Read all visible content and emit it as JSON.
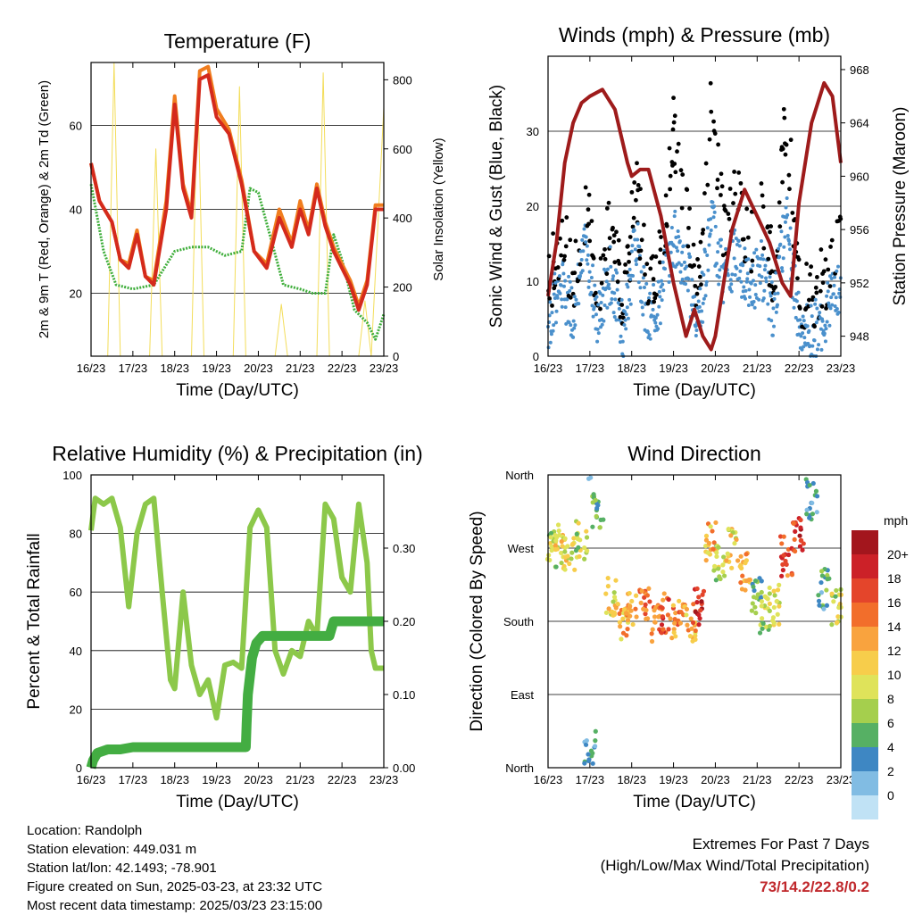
{
  "colors": {
    "temp_2m": "#d42a1c",
    "temp_9m": "#f07d1e",
    "dewpoint": "#3fae3b",
    "solar": "#f3dd5a",
    "wind": "#4a90cc",
    "gust": "#000000",
    "pressure": "#9e1b1b",
    "rh": "#8cc84a",
    "precip": "#43ad42"
  },
  "x_tick_labels": [
    "16/23",
    "17/23",
    "18/23",
    "19/23",
    "20/23",
    "21/23",
    "22/23",
    "23/23"
  ],
  "chart_data": [
    {
      "id": "temperature",
      "type": "line",
      "title": "Temperature (F)",
      "xlabel": "Time (Day/UTC)",
      "ylabel": "2m & 9m T (Red, Orange) & 2m Td (Green)",
      "y2label": "Solar Insolation (Yellow)",
      "ylim": [
        5,
        75
      ],
      "yticks": [
        20,
        40,
        60
      ],
      "y2lim": [
        0,
        850
      ],
      "y2ticks": [
        0,
        200,
        400,
        600,
        800
      ],
      "x_days": [
        16,
        23
      ],
      "series": [
        {
          "key": "temp_2m",
          "axis": "left",
          "x": [
            16,
            16.2,
            16.5,
            16.7,
            16.9,
            17.1,
            17.3,
            17.5,
            17.8,
            18.0,
            18.2,
            18.4,
            18.6,
            18.8,
            19.0,
            19.3,
            19.6,
            19.9,
            20.2,
            20.5,
            20.8,
            21.0,
            21.2,
            21.4,
            21.6,
            21.8,
            22.0,
            22.2,
            22.4,
            22.6,
            22.8,
            23.0
          ],
          "values": [
            51,
            42,
            37,
            28,
            26,
            34,
            24,
            22,
            40,
            65,
            45,
            38,
            71,
            72,
            62,
            58,
            46,
            30,
            26,
            38,
            31,
            40,
            34,
            45,
            36,
            30,
            26,
            22,
            16,
            22,
            40,
            40
          ]
        },
        {
          "key": "temp_9m",
          "axis": "left",
          "x": [
            16,
            16.2,
            16.5,
            16.7,
            16.9,
            17.1,
            17.3,
            17.5,
            17.8,
            18.0,
            18.2,
            18.4,
            18.6,
            18.8,
            19.0,
            19.3,
            19.6,
            19.9,
            20.2,
            20.5,
            20.8,
            21.0,
            21.2,
            21.4,
            21.6,
            21.8,
            22.0,
            22.2,
            22.4,
            22.6,
            22.8,
            23.0
          ],
          "values": [
            51,
            42,
            37,
            28,
            27,
            35,
            24,
            23,
            42,
            67,
            46,
            39,
            73,
            74,
            64,
            59,
            47,
            30,
            27,
            40,
            32,
            42,
            35,
            46,
            37,
            31,
            27,
            23,
            17,
            23,
            41,
            41
          ]
        },
        {
          "key": "dewpoint",
          "axis": "left",
          "x": [
            16,
            16.3,
            16.6,
            17.0,
            17.5,
            18.0,
            18.4,
            18.8,
            19.2,
            19.6,
            19.8,
            20.0,
            20.3,
            20.6,
            21.0,
            21.3,
            21.6,
            21.8,
            22.0,
            22.3,
            22.6,
            22.8,
            23.0
          ],
          "values": [
            46,
            30,
            22,
            21,
            22,
            30,
            31,
            31,
            29,
            30,
            45,
            44,
            33,
            22,
            21,
            20,
            20,
            34,
            28,
            16,
            13,
            9,
            15
          ]
        },
        {
          "key": "solar",
          "axis": "right",
          "x": [
            16,
            16.4,
            16.55,
            16.7,
            17.4,
            17.55,
            17.7,
            18.4,
            18.55,
            18.7,
            19.4,
            19.55,
            19.7,
            20.4,
            20.55,
            20.7,
            21.4,
            21.55,
            21.7,
            22.4,
            22.55,
            22.7,
            23.0
          ],
          "values": [
            0,
            0,
            850,
            0,
            0,
            600,
            0,
            0,
            790,
            0,
            0,
            780,
            0,
            0,
            150,
            0,
            0,
            820,
            0,
            0,
            160,
            0,
            720
          ]
        }
      ]
    },
    {
      "id": "winds",
      "type": "scatter",
      "title": "Winds (mph) & Pressure (mb)",
      "xlabel": "Time (Day/UTC)",
      "ylabel": "Sonic Wind & Gust (Blue, Black)",
      "y2label": "Station Pressure (Maroon)",
      "ylim": [
        0,
        40
      ],
      "yticks": [
        0,
        10,
        20,
        30
      ],
      "y2lim": [
        946.5,
        969
      ],
      "y2ticks": [
        948,
        952,
        956,
        960,
        964,
        968
      ],
      "x_days": [
        16,
        23
      ],
      "series": [
        {
          "key": "wind",
          "axis": "left",
          "x": [
            16,
            16.3,
            16.6,
            16.9,
            17.2,
            17.5,
            17.8,
            18.1,
            18.4,
            18.7,
            19.0,
            19.3,
            19.6,
            19.9,
            20.2,
            20.5,
            20.8,
            21.1,
            21.4,
            21.7,
            22.0,
            22.3,
            22.6,
            22.9,
            23.0
          ],
          "values": [
            4,
            10,
            6,
            14,
            5,
            11,
            3,
            16,
            4,
            8,
            16,
            12,
            4,
            18,
            10,
            14,
            9,
            12,
            6,
            19,
            4,
            3,
            5,
            9,
            10
          ]
        },
        {
          "key": "gust",
          "axis": "left",
          "x": [
            16,
            16.3,
            16.6,
            16.9,
            17.2,
            17.5,
            17.8,
            18.1,
            18.4,
            18.7,
            19.0,
            19.3,
            19.6,
            19.9,
            20.2,
            20.5,
            20.8,
            21.1,
            21.4,
            21.7,
            22.0,
            22.3,
            22.6,
            22.9,
            23.0
          ],
          "values": [
            9,
            16,
            11,
            20,
            9,
            18,
            7,
            22,
            9,
            13,
            30,
            20,
            7,
            35,
            16,
            22,
            14,
            20,
            11,
            33,
            8,
            7,
            10,
            15,
            16
          ]
        },
        {
          "key": "pressure",
          "axis": "right",
          "x": [
            16,
            16.2,
            16.4,
            16.6,
            16.8,
            17.0,
            17.3,
            17.6,
            17.9,
            18.0,
            18.2,
            18.4,
            18.7,
            19.0,
            19.3,
            19.5,
            19.7,
            19.9,
            20.0,
            20.2,
            20.4,
            20.7,
            21.0,
            21.3,
            21.6,
            21.8,
            22.0,
            22.3,
            22.6,
            22.8,
            23.0
          ],
          "values": [
            951,
            955,
            961,
            964,
            965.5,
            966,
            966.5,
            965,
            961,
            960,
            960.5,
            960.5,
            957,
            952,
            948,
            950,
            948,
            947,
            948,
            952,
            956,
            959,
            957,
            955,
            952,
            951,
            958,
            964,
            967,
            966,
            961
          ]
        }
      ]
    },
    {
      "id": "humidity",
      "type": "line",
      "title": "Relative Humidity (%) & Precipitation (in)",
      "xlabel": "Time (Day/UTC)",
      "ylabel": "Percent & Total Rainfall",
      "ylim": [
        0,
        100
      ],
      "yticks": [
        0,
        20,
        40,
        60,
        80,
        100
      ],
      "y2lim": [
        0,
        0.4
      ],
      "y2ticks": [
        "0.00",
        "0.10",
        "0.20",
        "0.30"
      ],
      "x_days": [
        16,
        23
      ],
      "series": [
        {
          "key": "rh",
          "axis": "left",
          "x": [
            16,
            16.1,
            16.3,
            16.5,
            16.7,
            16.9,
            17.1,
            17.3,
            17.5,
            17.7,
            17.9,
            18.0,
            18.2,
            18.4,
            18.6,
            18.8,
            19.0,
            19.2,
            19.4,
            19.6,
            19.8,
            20.0,
            20.2,
            20.4,
            20.6,
            20.8,
            21.0,
            21.2,
            21.4,
            21.6,
            21.8,
            22.0,
            22.2,
            22.4,
            22.6,
            22.7,
            22.8,
            23.0
          ],
          "values": [
            81,
            92,
            90,
            92,
            82,
            55,
            80,
            90,
            92,
            60,
            30,
            27,
            60,
            35,
            25,
            30,
            17,
            35,
            36,
            34,
            82,
            88,
            82,
            40,
            32,
            40,
            38,
            50,
            45,
            90,
            85,
            65,
            60,
            90,
            70,
            40,
            34,
            34
          ]
        },
        {
          "key": "precip",
          "axis": "right",
          "x": [
            16,
            16.05,
            16.15,
            16.4,
            16.7,
            17.0,
            17.5,
            18.0,
            18.5,
            19.0,
            19.5,
            19.7,
            19.72,
            19.75,
            19.85,
            19.95,
            20.1,
            20.5,
            21.0,
            21.5,
            21.7,
            21.8,
            22.0,
            22.5,
            23.0
          ],
          "values": [
            0,
            0.01,
            0.02,
            0.025,
            0.025,
            0.028,
            0.028,
            0.028,
            0.028,
            0.028,
            0.028,
            0.028,
            0.06,
            0.1,
            0.15,
            0.17,
            0.18,
            0.18,
            0.18,
            0.18,
            0.18,
            0.2,
            0.2,
            0.2,
            0.2
          ]
        }
      ]
    },
    {
      "id": "wind_direction",
      "type": "scatter",
      "title": "Wind Direction",
      "xlabel": "Time (Day/UTC)",
      "ylabel": "Direction (Colored By Speed)",
      "yticks": [
        "North",
        "East",
        "South",
        "West",
        "North"
      ],
      "ylim": [
        0,
        360
      ],
      "x_days": [
        16,
        23
      ],
      "x": [
        16.1,
        16.3,
        16.5,
        16.8,
        17.0,
        17.2,
        17.5,
        17.8,
        18.0,
        18.3,
        18.6,
        18.8,
        19.1,
        19.4,
        19.6,
        19.9,
        20.1,
        20.4,
        20.7,
        21.0,
        21.2,
        21.4,
        21.7,
        22.0,
        22.3,
        22.6,
        22.9
      ],
      "direction": [
        270,
        275,
        265,
        280,
        20,
        320,
        210,
        180,
        190,
        200,
        180,
        190,
        180,
        180,
        200,
        280,
        250,
        270,
        240,
        210,
        190,
        200,
        260,
        290,
        330,
        220,
        200
      ],
      "speed": [
        8,
        10,
        9,
        8,
        3,
        5,
        10,
        12,
        13,
        15,
        14,
        16,
        14,
        12,
        18,
        12,
        8,
        10,
        13,
        5,
        8,
        9,
        16,
        18,
        3,
        4,
        8
      ],
      "legend": {
        "title": "mph",
        "labels": [
          "20+",
          "18",
          "16",
          "14",
          "12",
          "10",
          "8",
          "6",
          "4",
          "2",
          "0"
        ],
        "colors": [
          "#a3161d",
          "#cc2128",
          "#e4452b",
          "#f26e2b",
          "#f9a33e",
          "#f7cd4b",
          "#dfe35a",
          "#a5cf4d",
          "#56b064",
          "#3e87c3",
          "#81bce3",
          "#c0e2f5"
        ]
      }
    }
  ],
  "footer": {
    "location": "Location: Randolph",
    "elevation": "Station elevation: 449.031 m",
    "latlon": "Station lat/lon: 42.1493; -78.901",
    "created": "Figure created on Sun, 2025-03-23, at 23:32 UTC",
    "recent": "Most recent data timestamp: 2025/03/23 23:15:00"
  },
  "extremes": {
    "line1": "Extremes For Past 7 Days",
    "line2": "(High/Low/Max Wind/Total Precipitation)",
    "values": "73/14.2/22.8/0.2"
  }
}
